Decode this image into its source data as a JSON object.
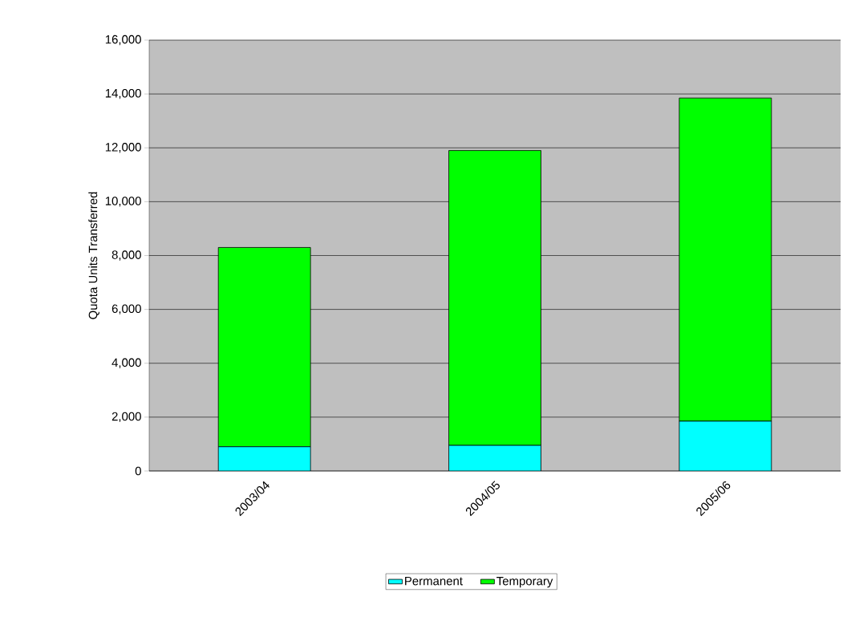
{
  "chart_data": {
    "type": "bar",
    "stacked": true,
    "ylabel": "Quota Units Transferred",
    "categories": [
      "2003/04",
      "2004/05",
      "2005/06"
    ],
    "series": [
      {
        "name": "Permanent",
        "color": "#00ffff",
        "values": [
          900,
          950,
          1850
        ]
      },
      {
        "name": "Temporary",
        "color": "#00ff00",
        "values": [
          7400,
          10950,
          12000
        ]
      }
    ],
    "ylim": [
      0,
      16000
    ],
    "yticks": [
      {
        "value": 0,
        "label": "0"
      },
      {
        "value": 2000,
        "label": "2,000"
      },
      {
        "value": 4000,
        "label": "4,000"
      },
      {
        "value": 6000,
        "label": "6,000"
      },
      {
        "value": 8000,
        "label": "8,000"
      },
      {
        "value": 10000,
        "label": "10,000"
      },
      {
        "value": 12000,
        "label": "12,000"
      },
      {
        "value": 14000,
        "label": "14,000"
      },
      {
        "value": 16000,
        "label": "16,000"
      }
    ],
    "grid": "y",
    "legend": "bottom"
  }
}
